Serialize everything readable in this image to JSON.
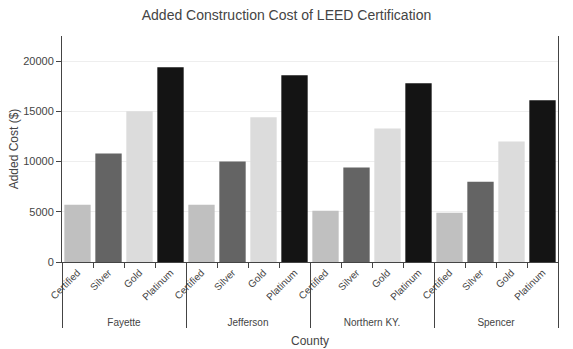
{
  "chart_data": {
    "type": "bar",
    "title": "Added Construction Cost of LEED Certification",
    "xlabel": "County",
    "ylabel": "Added Cost ($)",
    "categories": [
      "Fayette",
      "Jefferson",
      "Northern KY.",
      "Spencer"
    ],
    "series": [
      {
        "name": "Certified",
        "color": "#c0c0c0",
        "values": [
          5700,
          5700,
          5100,
          4900
        ]
      },
      {
        "name": "Silver",
        "color": "#646464",
        "values": [
          10800,
          10000,
          9400,
          8000
        ]
      },
      {
        "name": "Gold",
        "color": "#dcdcdc",
        "values": [
          15000,
          14400,
          13300,
          12000
        ]
      },
      {
        "name": "Platinum",
        "color": "#141414",
        "values": [
          19400,
          18600,
          17800,
          16100
        ]
      }
    ],
    "ylim": [
      0,
      22500
    ],
    "yticks": [
      0,
      5000,
      10000,
      15000,
      20000
    ],
    "grid": true
  }
}
